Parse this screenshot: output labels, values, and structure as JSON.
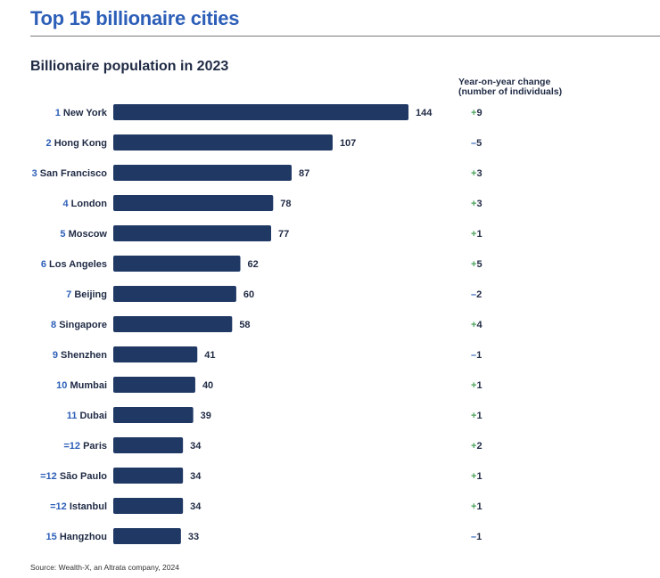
{
  "header": {
    "title": "Top 15 billionaire cities"
  },
  "chart_data": {
    "type": "bar",
    "orientation": "horizontal",
    "title": "Billionaire population in 2023",
    "change_header_line1": "Year-on-year change",
    "change_header_line2": "(number of individuals)",
    "bar_color": "#1f3864",
    "ranks": [
      "1",
      "2",
      "3",
      "4",
      "5",
      "6",
      "7",
      "8",
      "9",
      "10",
      "11",
      "=12",
      "=12",
      "=12",
      "15"
    ],
    "categories": [
      "New York",
      "Hong Kong",
      "San Francisco",
      "London",
      "Moscow",
      "Los Angeles",
      "Beijing",
      "Singapore",
      "Shenzhen",
      "Mumbai",
      "Dubai",
      "Paris",
      "São Paulo",
      "Istanbul",
      "Hangzhou"
    ],
    "values": [
      144,
      107,
      87,
      78,
      77,
      62,
      60,
      58,
      41,
      40,
      39,
      34,
      34,
      34,
      33
    ],
    "yoy_change": [
      "+9",
      "-5",
      "+3",
      "+3",
      "+1",
      "+5",
      "-2",
      "+4",
      "-1",
      "+1",
      "+1",
      "+2",
      "+1",
      "+1",
      "-1"
    ]
  },
  "footer": {
    "source": "Source: Wealth-X, an Altrata company, 2024"
  }
}
